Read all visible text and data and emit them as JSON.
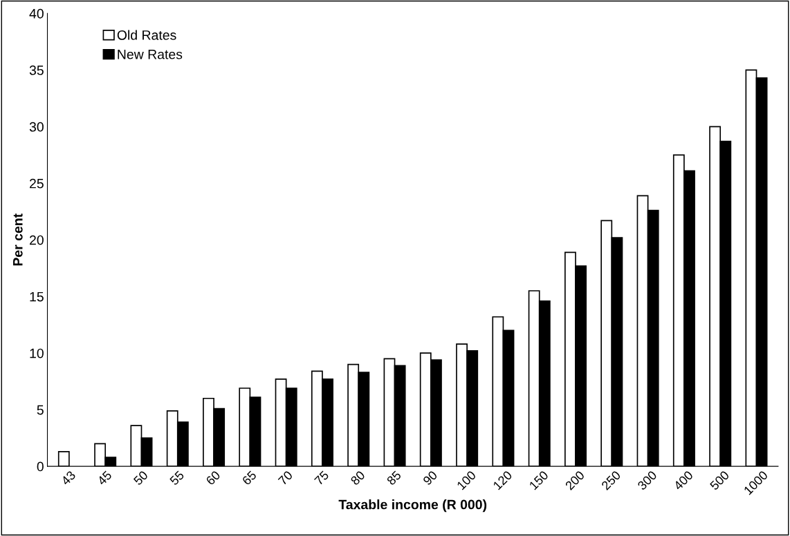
{
  "chart_data": {
    "type": "bar",
    "xlabel": "Taxable income (R 000)",
    "ylabel": "Per cent",
    "categories": [
      "43",
      "45",
      "50",
      "55",
      "60",
      "65",
      "70",
      "75",
      "80",
      "85",
      "90",
      "100",
      "120",
      "150",
      "200",
      "250",
      "300",
      "400",
      "500",
      "1000"
    ],
    "series": [
      {
        "name": "Old Rates",
        "color": "#ffffff",
        "values": [
          1.3,
          2.0,
          3.6,
          4.9,
          6.0,
          6.9,
          7.7,
          8.4,
          9.0,
          9.5,
          10.0,
          10.8,
          13.2,
          15.5,
          18.9,
          21.7,
          23.9,
          27.5,
          30.0,
          35.0
        ]
      },
      {
        "name": "New Rates",
        "color": "#000000",
        "values": [
          null,
          0.8,
          2.5,
          3.9,
          5.1,
          6.1,
          6.9,
          7.7,
          8.3,
          8.9,
          9.4,
          10.2,
          12.0,
          14.6,
          17.7,
          20.2,
          22.6,
          26.1,
          28.7,
          34.3
        ]
      }
    ],
    "ylim": [
      0,
      40
    ],
    "yticks": [
      0,
      5,
      10,
      15,
      20,
      25,
      30,
      35,
      40
    ],
    "grid": false,
    "legend": "top left"
  }
}
